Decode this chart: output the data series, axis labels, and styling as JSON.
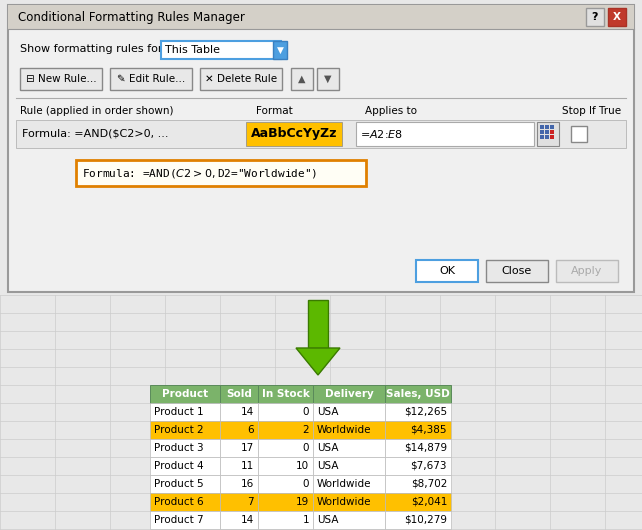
{
  "dialog_title": "Conditional Formatting Rules Manager",
  "show_label": "Show formatting rules for:",
  "dropdown_text": "This Table",
  "col_headers": [
    "Rule (applied in order shown)",
    "Format",
    "Applies to",
    "Stop If True"
  ],
  "rule_text": "Formula: =AND($C2>0, ...",
  "format_sample": "AaBbCcYyZz",
  "format_bg": "#FFC000",
  "applies_to": "=$A$2:$E$8",
  "formula_popup": "Formula: =AND($C2>0, $D2=\"Worldwide\")",
  "ok_button": "OK",
  "close_button": "Close",
  "apply_button": "Apply",
  "arrow_color": "#5CB800",
  "arrow_dark": "#3A7A00",
  "table_headers": [
    "Product",
    "Sold",
    "In Stock",
    "Delivery",
    "Sales, USD"
  ],
  "table_header_bg": "#7BB36A",
  "table_header_fg": "#FFFFFF",
  "table_data": [
    [
      "Product 1",
      "14",
      "0",
      "USA",
      "$12,265",
      false
    ],
    [
      "Product 2",
      "6",
      "2",
      "Worldwide",
      "$4,385",
      true
    ],
    [
      "Product 3",
      "17",
      "0",
      "USA",
      "$14,879",
      false
    ],
    [
      "Product 4",
      "11",
      "10",
      "USA",
      "$7,673",
      false
    ],
    [
      "Product 5",
      "16",
      "0",
      "Worldwide",
      "$8,702",
      false
    ],
    [
      "Product 6",
      "7",
      "19",
      "Worldwide",
      "$2,041",
      true
    ],
    [
      "Product 7",
      "14",
      "1",
      "USA",
      "$10,279",
      false
    ]
  ],
  "highlight_bg": "#FFC000",
  "normal_bg": "#FFFFFF",
  "excel_bg": "#E8E8E8",
  "fig_width": 6.42,
  "fig_height": 5.3
}
